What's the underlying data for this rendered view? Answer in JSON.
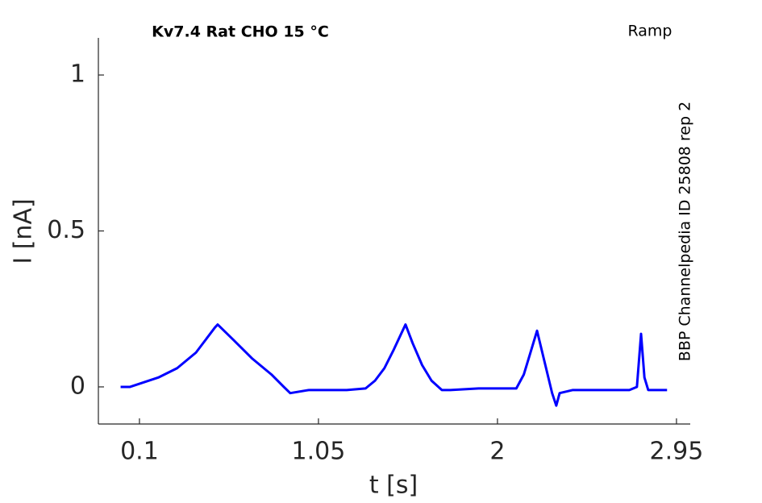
{
  "chart_data": {
    "type": "line",
    "title": "Kv7.4  Rat  CHO  15 °C",
    "subtitle": "Ramp",
    "annotation": "BBP Channelpedia ID 25808 rep 2",
    "x_label": "t [s]",
    "y_label": "I [nA]",
    "x": [
      0,
      0.05,
      0.1,
      0.2,
      0.3,
      0.4,
      0.5,
      0.515,
      0.6,
      0.7,
      0.8,
      0.866,
      0.9,
      1.0,
      1.1,
      1.2,
      1.3,
      1.35,
      1.4,
      1.45,
      1.512,
      1.55,
      1.6,
      1.65,
      1.705,
      1.75,
      1.9,
      2.0,
      2.1,
      2.14,
      2.17,
      2.21,
      2.25,
      2.29,
      2.312,
      2.33,
      2.4,
      2.5,
      2.6,
      2.7,
      2.74,
      2.762,
      2.78,
      2.8,
      2.85,
      2.9
    ],
    "series": [
      {
        "color": "#0000ff",
        "values": [
          0,
          0,
          0.01,
          0.03,
          0.06,
          0.11,
          0.19,
          0.2,
          0.15,
          0.09,
          0.04,
          0,
          -0.02,
          -0.01,
          -0.01,
          -0.01,
          -0.005,
          0.02,
          0.06,
          0.12,
          0.2,
          0.14,
          0.07,
          0.02,
          -0.01,
          -0.01,
          -0.005,
          -0.005,
          -0.005,
          0.04,
          0.1,
          0.18,
          0.08,
          -0.02,
          -0.06,
          -0.02,
          -0.01,
          -0.01,
          -0.01,
          -0.01,
          0,
          0.17,
          0.03,
          -0.01,
          -0.01,
          -0.01
        ]
      }
    ],
    "xlim": [
      -0.118,
      3.023
    ],
    "ylim": [
      -0.119,
      1.119
    ],
    "xticks": [
      0.1,
      1.05,
      2,
      2.95
    ],
    "yticks": [
      0,
      0.5,
      1
    ],
    "grid": false
  }
}
